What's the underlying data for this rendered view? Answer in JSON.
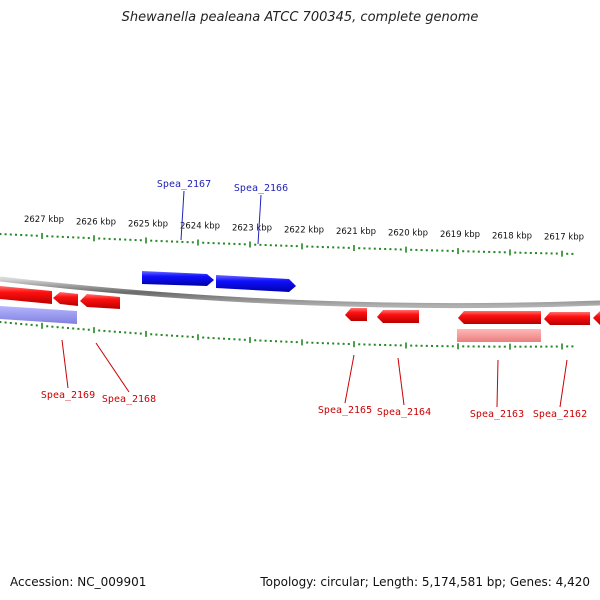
{
  "title": "Shewanella pealeana ATCC 700345, complete genome",
  "footer": {
    "accession": "Accession: NC_009901",
    "summary": "Topology: circular; Length: 5,174,581 bp; Genes: 4,420"
  },
  "colors": {
    "forward": "#1a1aff",
    "reverse": "#ff0000",
    "forward_label": "#2222bb",
    "reverse_label": "#cc0000",
    "tick": "#228822",
    "backbone": "#808080"
  },
  "chart_data": {
    "type": "genome-map",
    "kbp_ticks": [
      {
        "kbp": 2627,
        "label": "2627 kbp"
      },
      {
        "kbp": 2626,
        "label": "2626 kbp"
      },
      {
        "kbp": 2625,
        "label": "2625 kbp"
      },
      {
        "kbp": 2624,
        "label": "2624 kbp"
      },
      {
        "kbp": 2623,
        "label": "2623 kbp"
      },
      {
        "kbp": 2622,
        "label": "2622 kbp"
      },
      {
        "kbp": 2621,
        "label": "2621 kbp"
      },
      {
        "kbp": 2620,
        "label": "2620 kbp"
      },
      {
        "kbp": 2619,
        "label": "2619 kbp"
      },
      {
        "kbp": 2618,
        "label": "2618 kbp"
      },
      {
        "kbp": 2617,
        "label": "2617 kbp"
      }
    ],
    "labeled_genes": [
      {
        "name": "Spea_2169",
        "strand": "reverse"
      },
      {
        "name": "Spea_2168",
        "strand": "reverse"
      },
      {
        "name": "Spea_2167",
        "strand": "forward"
      },
      {
        "name": "Spea_2166",
        "strand": "forward"
      },
      {
        "name": "Spea_2165",
        "strand": "reverse"
      },
      {
        "name": "Spea_2164",
        "strand": "reverse"
      },
      {
        "name": "Spea_2163",
        "strand": "reverse"
      },
      {
        "name": "Spea_2162",
        "strand": "reverse"
      }
    ]
  }
}
